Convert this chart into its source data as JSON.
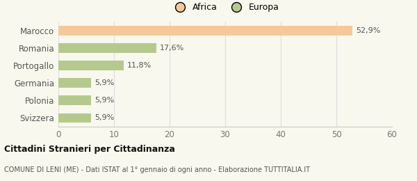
{
  "categories": [
    "Marocco",
    "Romania",
    "Portogallo",
    "Germania",
    "Polonia",
    "Svizzera"
  ],
  "values": [
    52.9,
    17.6,
    11.8,
    5.9,
    5.9,
    5.9
  ],
  "labels": [
    "52,9%",
    "17,6%",
    "11,8%",
    "5,9%",
    "5,9%",
    "5,9%"
  ],
  "colors": [
    "#f5c89a",
    "#b5c98e",
    "#b5c98e",
    "#b5c98e",
    "#b5c98e",
    "#b5c98e"
  ],
  "legend": [
    {
      "label": "Africa",
      "color": "#f5c89a"
    },
    {
      "label": "Europa",
      "color": "#b5c98e"
    }
  ],
  "xlim": [
    0,
    60
  ],
  "xticks": [
    0,
    10,
    20,
    30,
    40,
    50,
    60
  ],
  "title": "Cittadini Stranieri per Cittadinanza",
  "subtitle": "COMUNE DI LENI (ME) - Dati ISTAT al 1° gennaio di ogni anno - Elaborazione TUTTITALIA.IT",
  "background_color": "#f8f8ee",
  "bar_height": 0.55
}
